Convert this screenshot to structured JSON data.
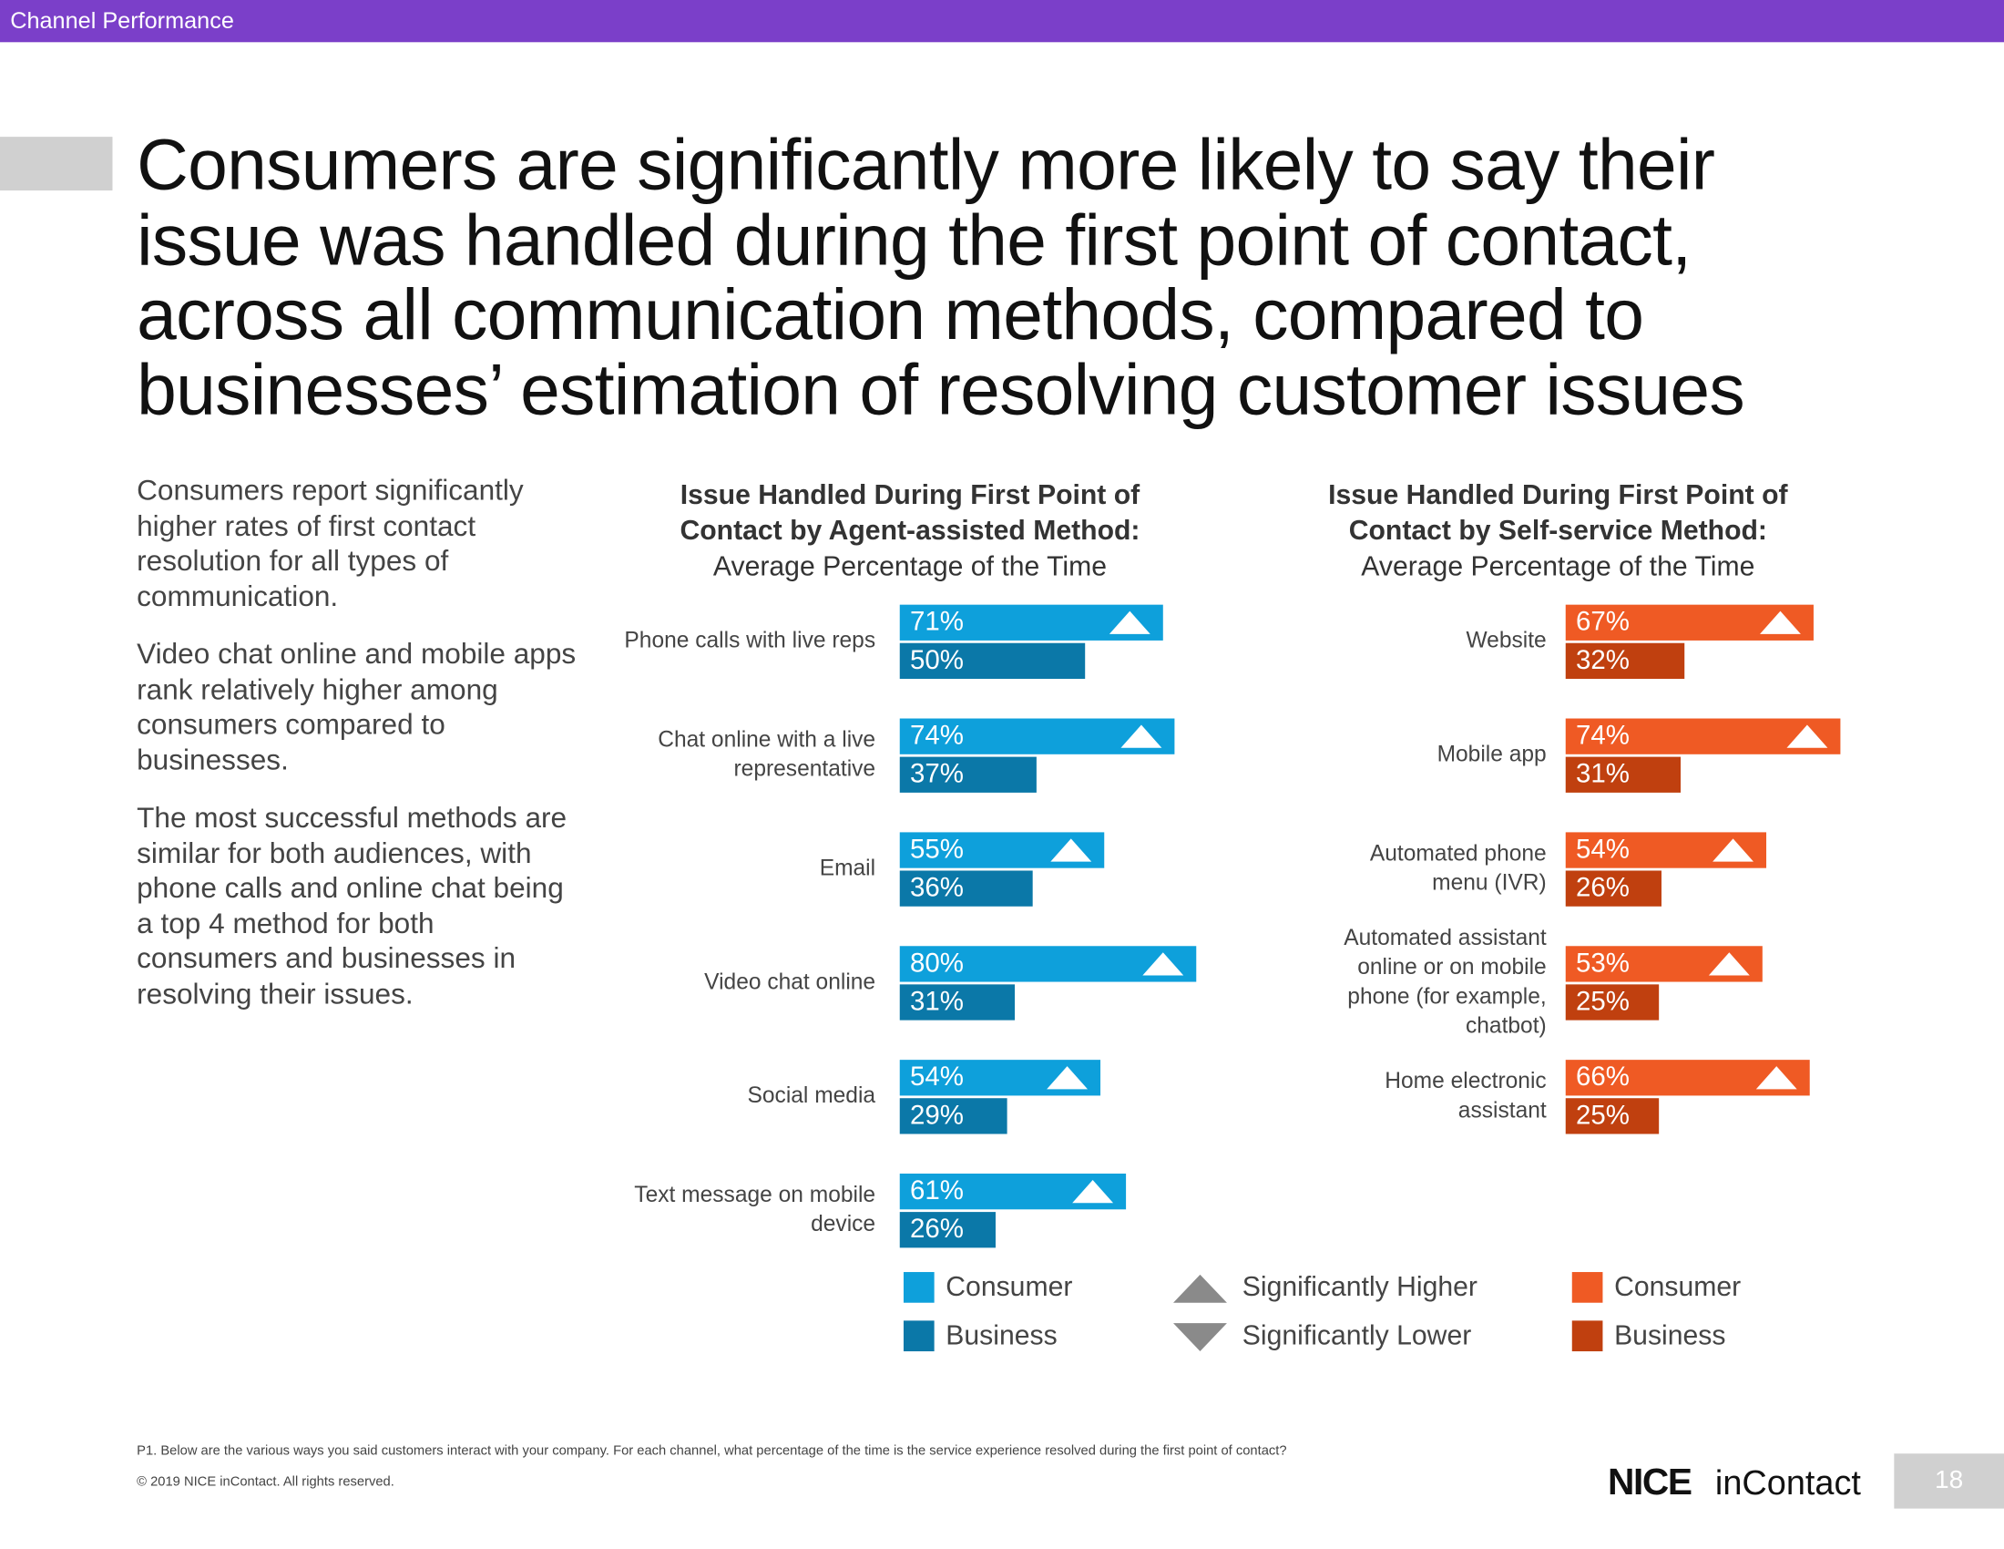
{
  "header": "Channel Performance",
  "title": [
    "Consumers are significantly more likely to say their",
    "issue was handled during the first point of contact,",
    "across all communication methods, compared to",
    "businesses’ estimation of resolving customer issues"
  ],
  "body": [
    "Consumers report significantly higher rates of first contact resolution for all types of communication.",
    "Video chat online and mobile apps rank relatively higher among consumers compared to businesses.",
    "The most successful methods are similar for both audiences, with phone calls and online chat being a top 4 method for both consumers and businesses in resolving their issues."
  ],
  "chart_data": [
    {
      "type": "bar",
      "orientation": "horizontal",
      "title": "Issue Handled During First Point of Contact by Agent-assisted Method:",
      "subtitle": "Average Percentage of the Time",
      "categories": [
        "Phone calls with live reps",
        "Chat online with a live representative",
        "Email",
        "Video chat online",
        "Social media",
        "Text message on mobile device"
      ],
      "xlim": [
        0,
        100
      ],
      "series": [
        {
          "name": "Consumer",
          "color": "#0ea0db",
          "values": [
            71,
            74,
            55,
            80,
            54,
            61
          ],
          "value_labels": [
            "71%",
            "74%",
            "55%",
            "80%",
            "54%",
            "61%"
          ],
          "significantly_higher": [
            true,
            true,
            true,
            true,
            true,
            true
          ]
        },
        {
          "name": "Business",
          "color": "#0b78a8",
          "values": [
            50,
            37,
            36,
            31,
            29,
            26
          ],
          "value_labels": [
            "50%",
            "37%",
            "36%",
            "31%",
            "29%",
            "26%"
          ]
        }
      ]
    },
    {
      "type": "bar",
      "orientation": "horizontal",
      "title": "Issue Handled During First Point of Contact by Self-service Method:",
      "subtitle": "Average Percentage of the Time",
      "categories": [
        "Website",
        "Mobile app",
        "Automated phone menu (IVR)",
        "Automated assistant online or on mobile phone (for example, chatbot)",
        "Home electronic assistant"
      ],
      "xlim": [
        0,
        100
      ],
      "series": [
        {
          "name": "Consumer",
          "color": "#ef5a24",
          "values": [
            67,
            74,
            54,
            53,
            66
          ],
          "value_labels": [
            "67%",
            "74%",
            "54%",
            "53%",
            "66%"
          ],
          "significantly_higher": [
            true,
            true,
            true,
            true,
            true
          ]
        },
        {
          "name": "Business",
          "color": "#c0400f",
          "values": [
            32,
            31,
            26,
            25,
            25
          ],
          "value_labels": [
            "32%",
            "31%",
            "26%",
            "25%",
            "25%"
          ]
        }
      ]
    }
  ],
  "significance_legend": {
    "color": "#8a8a8a",
    "items": [
      "Significantly Higher",
      "Significantly Lower"
    ]
  },
  "footnote": "P1. Below are the various ways you said customers interact with your company. For each channel, what percentage of the time is the service experience resolved during the first point of contact?",
  "copyright": "© 2019 NICE inContact. All rights reserved.",
  "logo": [
    "NICE",
    "inContact"
  ],
  "page_number": "18"
}
